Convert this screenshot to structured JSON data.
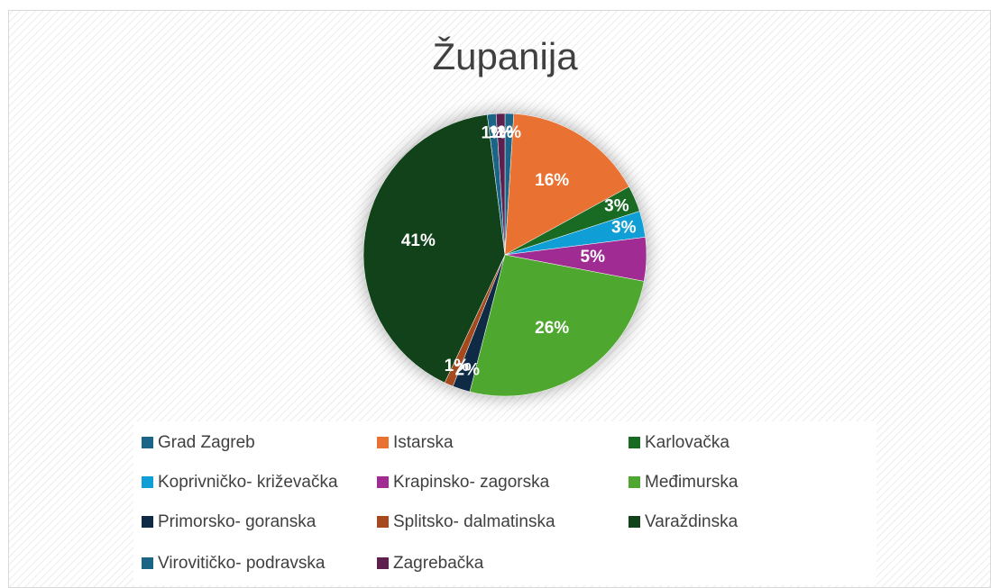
{
  "chart_data": {
    "type": "pie",
    "title": "Županija",
    "categories": [
      "Grad Zagreb",
      "Istarska",
      "Karlovačka",
      "Koprivničko- križevačka",
      "Krapinsko- zagorska",
      "Međimurska",
      "Primorsko- goranska",
      "Splitsko- dalmatinska",
      "Varaždinska",
      "Virovitičko- podravska",
      "Zagrebačka"
    ],
    "values": [
      1,
      16,
      3,
      3,
      5,
      26,
      2,
      1,
      41,
      1,
      1
    ],
    "value_labels": [
      "1%",
      "16%",
      "3%",
      "3%",
      "5%",
      "26%",
      "2%",
      "1%",
      "41%",
      "1%",
      "1%"
    ],
    "colors": [
      "#1b6688",
      "#e97132",
      "#196b24",
      "#0f9ed5",
      "#a02b93",
      "#4ea72e",
      "#0e2a45",
      "#a5491e",
      "#12421a",
      "#1a6585",
      "#5c1f4e"
    ],
    "legend": "bottom"
  }
}
